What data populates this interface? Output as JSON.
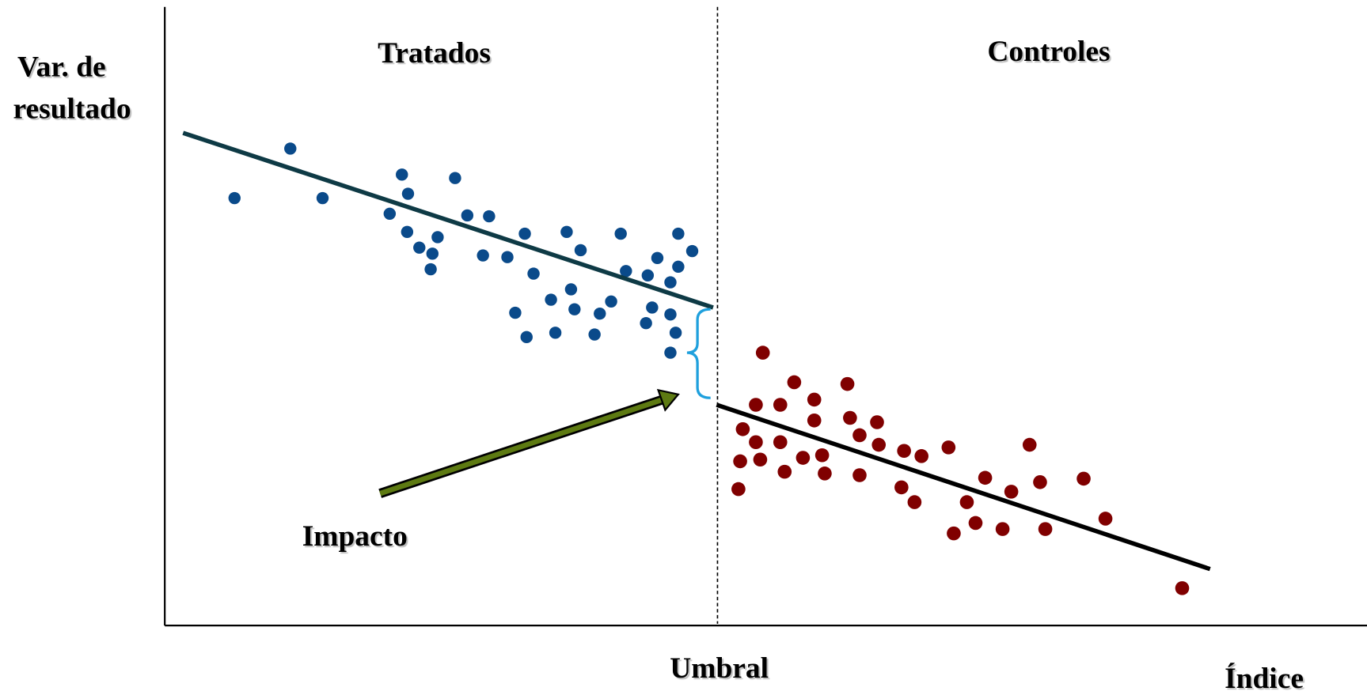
{
  "axis_labels": {
    "y": [
      "Var. de",
      "resultado"
    ],
    "x": "Índice",
    "threshold": "Umbral"
  },
  "groups": {
    "left": "Tratados",
    "right": "Controles"
  },
  "annotation": "Impacto"
}
